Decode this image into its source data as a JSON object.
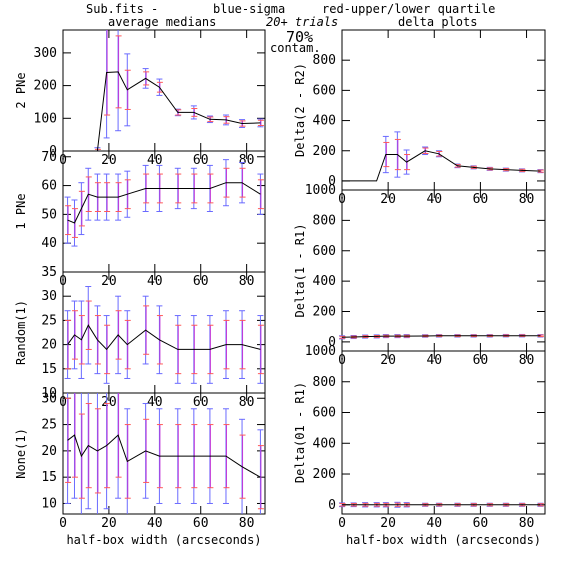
{
  "header": {
    "prefix": "Sub.fits  -",
    "blue_label": "blue-sigma",
    "red_label": "red-upper/lower quartile",
    "left_title": "average medians",
    "right_title": "delta plots",
    "trials": "20+ trials",
    "contam_pct": "70%",
    "contam_word": "contam.",
    "blue_color": "#6a6aff",
    "red_color": "#ff5a5a",
    "magenta_color": "#c23ad6"
  },
  "chart_data": [
    {
      "type": "line",
      "ylabel": "2 PNe",
      "xlabel": "",
      "xlim": [
        0,
        88
      ],
      "ylim": [
        0,
        370
      ],
      "x": [
        15,
        19,
        24,
        28,
        36,
        42,
        50,
        57,
        64,
        71,
        78,
        86
      ],
      "y": [
        0,
        240,
        242,
        187,
        222,
        195,
        118,
        118,
        97,
        95,
        84,
        86
      ],
      "sigma": [
        10,
        200,
        180,
        110,
        30,
        25,
        10,
        20,
        10,
        15,
        12,
        12
      ],
      "quartile": [
        5,
        130,
        110,
        60,
        20,
        15,
        8,
        12,
        7,
        10,
        8,
        8
      ],
      "yticks": [
        0,
        100,
        200,
        300
      ],
      "xticks": [
        0,
        20,
        40,
        60,
        80
      ]
    },
    {
      "type": "line",
      "ylabel": "1 PNe",
      "xlabel": "",
      "xlim": [
        0,
        88
      ],
      "ylim": [
        30,
        72
      ],
      "x": [
        2,
        5,
        8,
        11,
        15,
        19,
        24,
        28,
        36,
        42,
        50,
        57,
        64,
        71,
        78,
        86
      ],
      "y": [
        48,
        47,
        52,
        57,
        56,
        56,
        56,
        57,
        59,
        59,
        59,
        59,
        59,
        61,
        61,
        57
      ],
      "sigma": [
        8,
        8,
        9,
        9,
        8,
        8,
        8,
        8,
        8,
        8,
        7,
        7,
        8,
        8,
        7,
        7
      ],
      "quartile": [
        5,
        5,
        6,
        6,
        5,
        5,
        5,
        5,
        5,
        5,
        5,
        5,
        5,
        5,
        5,
        5
      ],
      "yticks": [
        40,
        50,
        60,
        70
      ],
      "xticks": [
        0,
        20,
        40,
        60,
        80
      ]
    },
    {
      "type": "line",
      "ylabel": "Random(1)",
      "xlabel": "",
      "xlim": [
        0,
        88
      ],
      "ylim": [
        10,
        35
      ],
      "x": [
        2,
        5,
        8,
        11,
        15,
        19,
        24,
        28,
        36,
        42,
        50,
        57,
        64,
        71,
        78,
        86
      ],
      "y": [
        20,
        22,
        21,
        24,
        21,
        19,
        22,
        20,
        23,
        21,
        19,
        19,
        19,
        20,
        20,
        19
      ],
      "sigma": [
        7,
        7,
        8,
        8,
        7,
        7,
        8,
        7,
        7,
        7,
        7,
        7,
        7,
        7,
        7,
        7
      ],
      "quartile": [
        5,
        5,
        5,
        5,
        5,
        5,
        5,
        5,
        5,
        5,
        5,
        5,
        5,
        5,
        5,
        5
      ],
      "yticks": [
        10,
        15,
        20,
        25,
        30,
        35
      ],
      "xticks": [
        0,
        20,
        40,
        60,
        80
      ]
    },
    {
      "type": "line",
      "ylabel": "None(1)",
      "xlabel": "half-box width (arcseconds)",
      "xlim": [
        0,
        88
      ],
      "ylim": [
        8,
        31
      ],
      "x": [
        2,
        5,
        8,
        11,
        15,
        19,
        24,
        28,
        36,
        42,
        50,
        57,
        64,
        71,
        78,
        86
      ],
      "y": [
        22,
        23,
        19,
        21,
        20,
        21,
        23,
        18,
        20,
        19,
        19,
        19,
        19,
        19,
        17,
        15
      ],
      "sigma": [
        12,
        12,
        12,
        12,
        12,
        12,
        12,
        10,
        9,
        9,
        9,
        9,
        9,
        9,
        9,
        9
      ],
      "quartile": [
        8,
        8,
        8,
        8,
        8,
        8,
        8,
        7,
        6,
        6,
        6,
        6,
        6,
        6,
        6,
        6
      ],
      "yticks": [
        10,
        15,
        20,
        25,
        30
      ],
      "xticks": [
        0,
        20,
        40,
        60,
        80
      ]
    },
    {
      "type": "line",
      "ylabel": "Delta(2 - R2)",
      "xlabel": "",
      "xlim": [
        0,
        88
      ],
      "ylim": [
        -60,
        1000
      ],
      "x": [
        0,
        5,
        10,
        15,
        19,
        24,
        28,
        36,
        42,
        50,
        57,
        64,
        71,
        78,
        86
      ],
      "y": [
        0,
        0,
        0,
        0,
        175,
        175,
        125,
        200,
        180,
        100,
        90,
        80,
        75,
        70,
        65
      ],
      "sigma": [
        0,
        0,
        0,
        0,
        120,
        150,
        80,
        25,
        20,
        12,
        10,
        10,
        10,
        10,
        10
      ],
      "quartile": [
        0,
        0,
        0,
        0,
        80,
        100,
        50,
        18,
        15,
        8,
        7,
        7,
        7,
        7,
        7
      ],
      "yticks": [
        0,
        200,
        400,
        600,
        800
      ],
      "xticks": [
        0,
        20,
        40,
        60,
        80
      ]
    },
    {
      "type": "line",
      "ylabel": "Delta(1 - R1)",
      "xlabel": "",
      "xlim": [
        0,
        88
      ],
      "ylim": [
        -60,
        1000
      ],
      "x": [
        0,
        5,
        10,
        15,
        19,
        24,
        28,
        36,
        42,
        50,
        57,
        64,
        71,
        78,
        86
      ],
      "y": [
        30,
        32,
        35,
        36,
        38,
        38,
        38,
        39,
        40,
        40,
        40,
        40,
        41,
        41,
        40
      ],
      "sigma": [
        10,
        10,
        10,
        10,
        10,
        10,
        10,
        8,
        8,
        8,
        8,
        8,
        8,
        8,
        8
      ],
      "quartile": [
        6,
        6,
        6,
        6,
        6,
        6,
        6,
        5,
        5,
        5,
        5,
        5,
        5,
        5,
        5
      ],
      "yticks": [
        0,
        200,
        400,
        600,
        800,
        1000
      ],
      "xticks": [
        0,
        20,
        40,
        60,
        80
      ]
    },
    {
      "type": "line",
      "ylabel": "Delta(01 - R1)",
      "xlabel": "half-box width (arcseconds)",
      "xlim": [
        0,
        88
      ],
      "ylim": [
        -60,
        1000
      ],
      "x": [
        0,
        5,
        10,
        15,
        19,
        24,
        28,
        36,
        42,
        50,
        57,
        64,
        71,
        78,
        86
      ],
      "y": [
        0,
        0,
        0,
        0,
        0,
        0,
        0,
        0,
        0,
        0,
        0,
        0,
        0,
        0,
        0
      ],
      "sigma": [
        12,
        12,
        14,
        14,
        14,
        16,
        14,
        10,
        10,
        10,
        10,
        10,
        10,
        10,
        10
      ],
      "quartile": [
        8,
        8,
        9,
        9,
        9,
        10,
        9,
        7,
        7,
        7,
        7,
        7,
        7,
        7,
        7
      ],
      "yticks": [
        0,
        200,
        400,
        600,
        800,
        1000
      ],
      "xticks": [
        0,
        20,
        40,
        60,
        80
      ]
    }
  ]
}
